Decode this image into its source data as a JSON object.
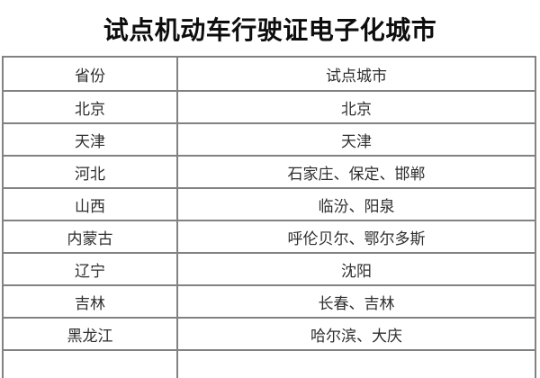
{
  "page": {
    "title": "试点机动车行驶证电子化城市"
  },
  "table": {
    "headers": {
      "province": "省份",
      "cities": "试点城市"
    },
    "rows": [
      {
        "province": "北京",
        "cities": "北京"
      },
      {
        "province": "天津",
        "cities": "天津"
      },
      {
        "province": "河北",
        "cities": "石家庄、保定、邯郸"
      },
      {
        "province": "山西",
        "cities": "临汾、阳泉"
      },
      {
        "province": "内蒙古",
        "cities": "呼伦贝尔、鄂尔多斯"
      },
      {
        "province": "辽宁",
        "cities": "沈阳"
      },
      {
        "province": "吉林",
        "cities": "长春、吉林"
      },
      {
        "province": "黑龙江",
        "cities": "哈尔滨、大庆"
      }
    ],
    "partial_row": {
      "province": "",
      "cities": ""
    }
  },
  "colors": {
    "border": "#828282",
    "text": "#2e2e2e",
    "title": "#0d0d0d",
    "background": "#ffffff"
  }
}
